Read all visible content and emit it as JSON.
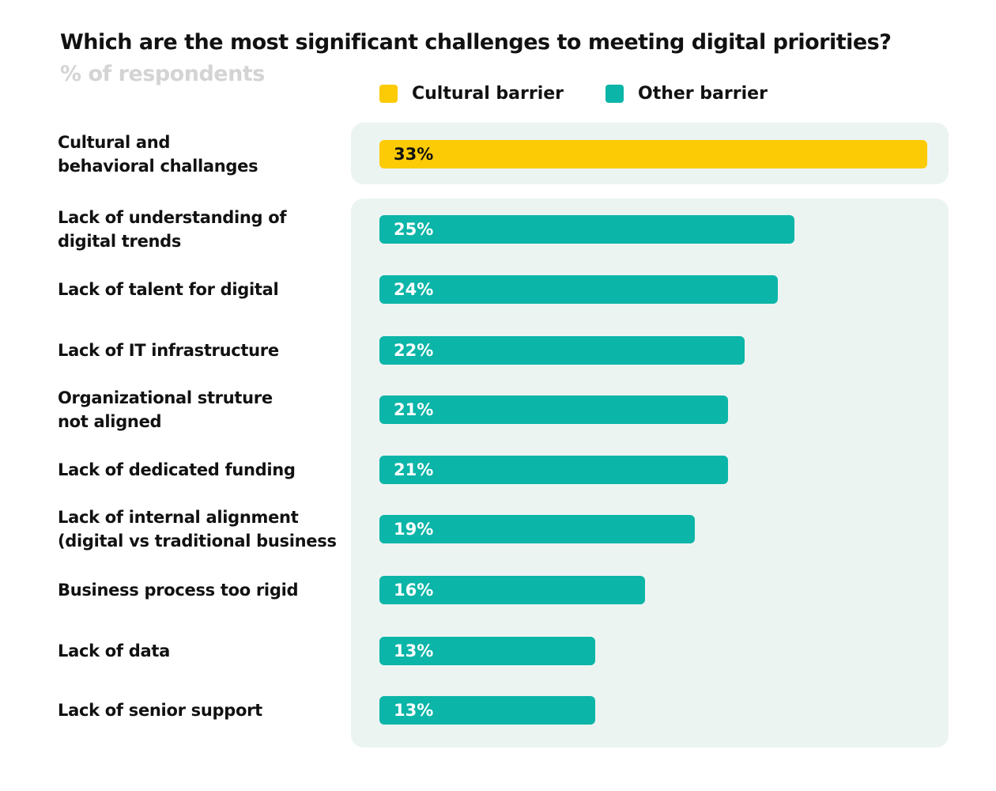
{
  "chart_data": {
    "type": "bar",
    "orientation": "horizontal",
    "title": "Which are the most significant challenges to meeting digital priorities?",
    "subtitle": "% of respondents",
    "legend": [
      {
        "name": "Cultural barrier",
        "color": "#fccb06"
      },
      {
        "name": "Other barrier",
        "color": "#0bb5a8"
      }
    ],
    "legend_position": "top",
    "grid": false,
    "xlim": [
      0,
      33
    ],
    "categories": [
      "Cultural and\nbehavioral challanges",
      "Lack of understanding of\ndigital trends",
      "Lack of talent for digital",
      "Lack of IT infrastructure",
      "Organizational struture\nnot aligned",
      "Lack of dedicated funding",
      "Lack of internal alignment\n(digital vs traditional business",
      "Business process too rigid",
      "Lack of data",
      "Lack of senior support"
    ],
    "values": [
      33,
      25,
      24,
      22,
      21,
      21,
      19,
      16,
      13,
      13
    ],
    "value_labels": [
      "33%",
      "25%",
      "24%",
      "22%",
      "21%",
      "21%",
      "19%",
      "16%",
      "13%",
      "13%"
    ],
    "series_of_category": [
      "Cultural barrier",
      "Other barrier",
      "Other barrier",
      "Other barrier",
      "Other barrier",
      "Other barrier",
      "Other barrier",
      "Other barrier",
      "Other barrier",
      "Other barrier"
    ]
  },
  "colors": {
    "panel": "#ecf4f2",
    "value_text_cultural": "#111111",
    "value_text_other": "#ffffff"
  }
}
